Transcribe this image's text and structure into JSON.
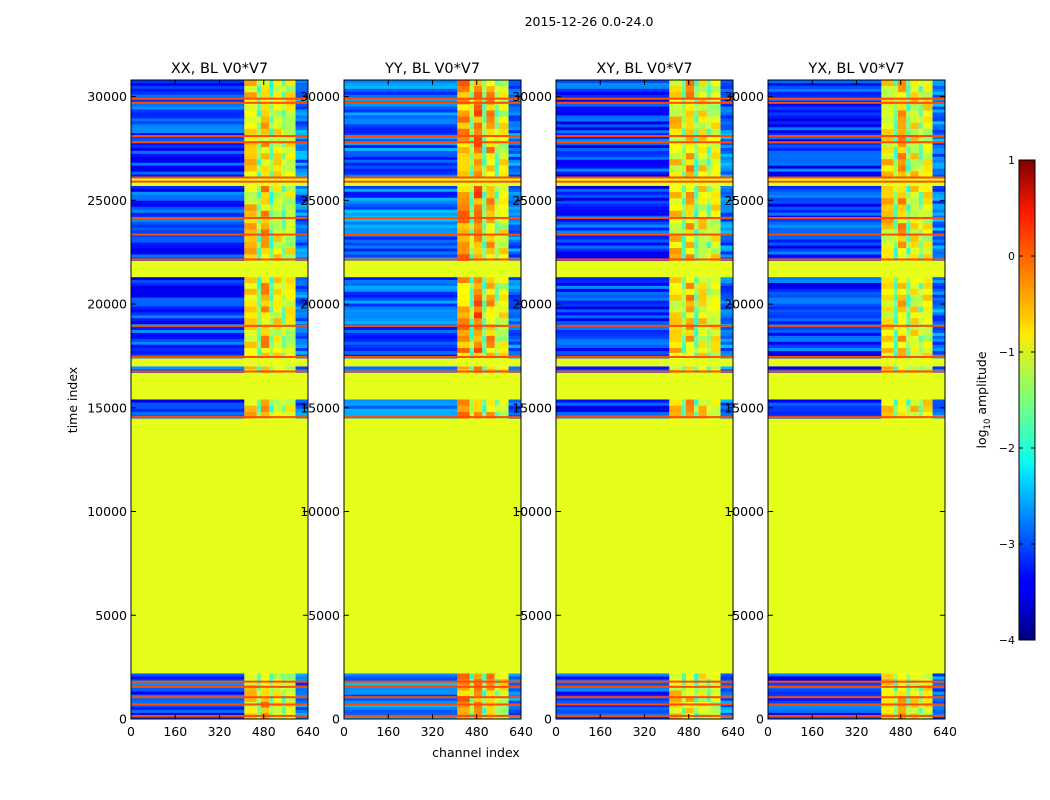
{
  "figure": {
    "suptitle": "2015-12-26 0.0-24.0",
    "xlabel": "channel index",
    "ylabel": "time index"
  },
  "chart_data": {
    "type": "heatmap",
    "title": "2015-12-26 0.0-24.0",
    "xlabel": "channel index",
    "ylabel": "time index",
    "xlim": [
      0,
      640
    ],
    "ylim": [
      0,
      30800
    ],
    "xticks": [
      0,
      160,
      320,
      480,
      640
    ],
    "yticks": [
      0,
      5000,
      10000,
      15000,
      20000,
      25000,
      30000
    ],
    "panels": [
      {
        "title": "XX, BL V0*V7",
        "pol": "XX",
        "baseline": "V0*V7"
      },
      {
        "title": "YY, BL V0*V7",
        "pol": "YY",
        "baseline": "V0*V7"
      },
      {
        "title": "XY, BL V0*V7",
        "pol": "XY",
        "baseline": "V0*V7"
      },
      {
        "title": "YX, BL V0*V7",
        "pol": "YX",
        "baseline": "V0*V7"
      }
    ],
    "colorbar": {
      "label": "log₁₀ amplitude",
      "label_main": "log",
      "label_sub": "10",
      "label_rest": " amplitude",
      "min": -4,
      "max": 1,
      "ticks": [
        -4,
        -3,
        -2,
        -1,
        0,
        1
      ],
      "tick_labels": [
        "−4",
        "−3",
        "−2",
        "−1",
        "0",
        "1"
      ],
      "colormap": "jet"
    },
    "masked_value": -1.0,
    "row_segments": [
      {
        "t0": 0,
        "t1": 2200,
        "state": "data"
      },
      {
        "t0": 2200,
        "t1": 14500,
        "state": "masked"
      },
      {
        "t0": 14500,
        "t1": 15400,
        "state": "data"
      },
      {
        "t0": 15400,
        "t1": 16700,
        "state": "masked"
      },
      {
        "t0": 16700,
        "t1": 17000,
        "state": "data"
      },
      {
        "t0": 17000,
        "t1": 17400,
        "state": "masked"
      },
      {
        "t0": 17400,
        "t1": 17900,
        "state": "data"
      },
      {
        "t0": 17900,
        "t1": 21300,
        "state": "data"
      },
      {
        "t0": 21300,
        "t1": 22100,
        "state": "masked"
      },
      {
        "t0": 22100,
        "t1": 25700,
        "state": "data"
      },
      {
        "t0": 25700,
        "t1": 26100,
        "state": "masked"
      },
      {
        "t0": 26100,
        "t1": 30800,
        "state": "data"
      }
    ],
    "flag_lines_time": [
      150,
      700,
      1050,
      1550,
      1800,
      14550,
      16750,
      17450,
      18950,
      22150,
      23350,
      24150,
      25900,
      26100,
      27800,
      28100,
      29700,
      29900
    ],
    "rfi_channels": [
      {
        "c0": 410,
        "c1": 455,
        "level": -0.8
      },
      {
        "c0": 455,
        "c1": 470,
        "level": -1.5
      },
      {
        "c0": 470,
        "c1": 500,
        "level": -0.6
      },
      {
        "c0": 500,
        "c1": 515,
        "level": -1.6
      },
      {
        "c0": 515,
        "c1": 545,
        "level": -0.9
      },
      {
        "c0": 545,
        "c1": 560,
        "level": -1.4
      },
      {
        "c0": 560,
        "c1": 595,
        "level": -1.0
      }
    ],
    "background_level": -3.1
  }
}
